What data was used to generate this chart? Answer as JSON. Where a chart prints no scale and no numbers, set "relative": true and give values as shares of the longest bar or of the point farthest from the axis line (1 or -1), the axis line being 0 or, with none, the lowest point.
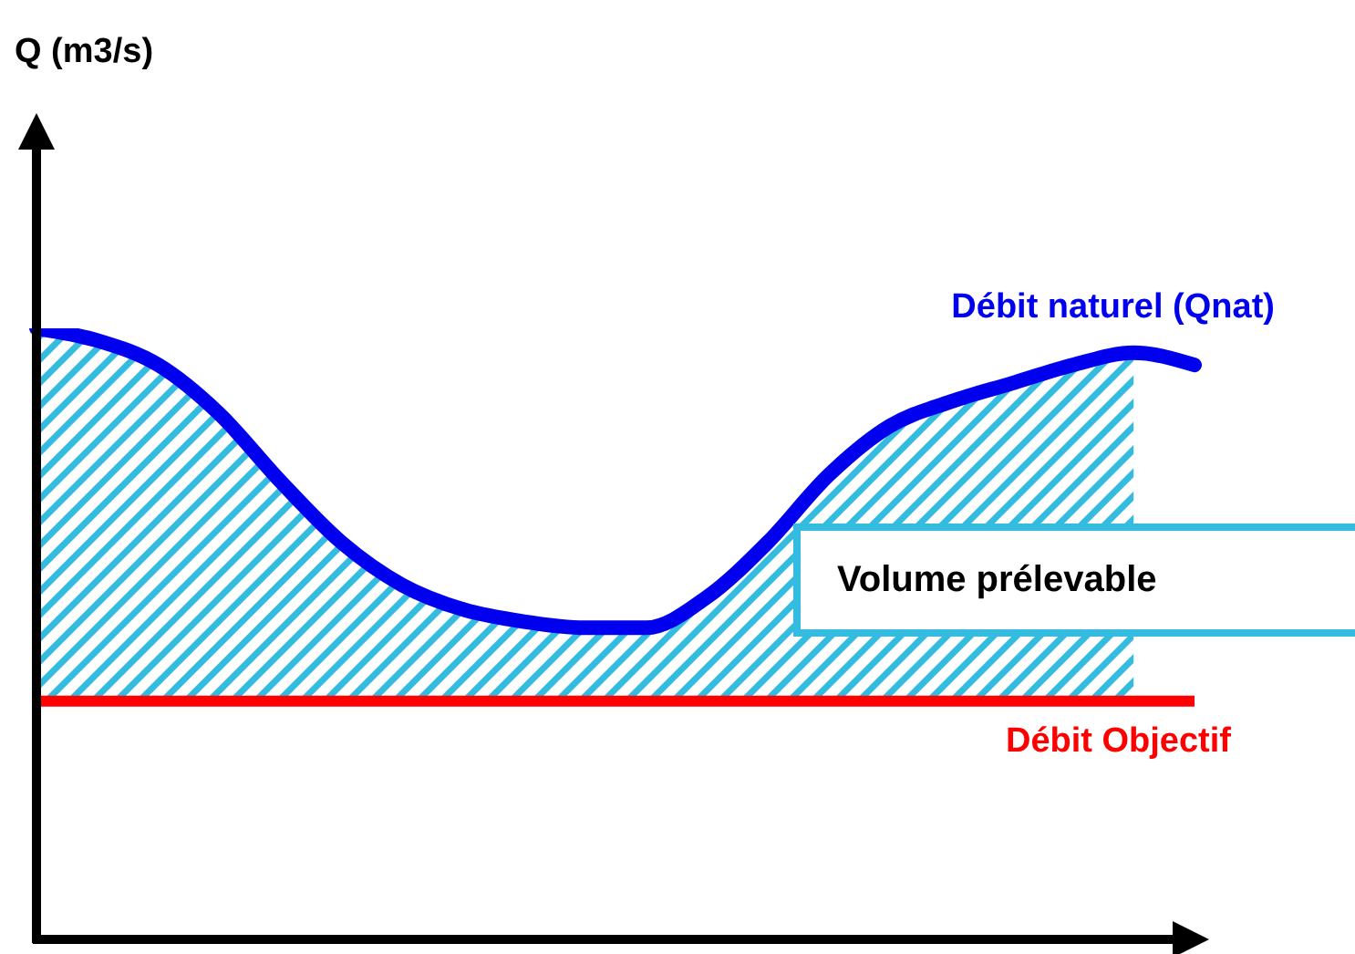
{
  "chart_data": {
    "type": "line",
    "relative": true,
    "annotations": [
      "Q (m3/s)"
    ],
    "categories": [
      null,
      null,
      null,
      null,
      null,
      null,
      null,
      null,
      null,
      null,
      null,
      null,
      null,
      null,
      null,
      null,
      null,
      null,
      null,
      null
    ],
    "series": [
      {
        "name": "Volume prélevable",
        "type": "area",
        "color": "#33bbe0",
        "values": [
          1,
          0.98,
          0.94,
          0.86,
          0.75,
          0.65,
          0.58,
          0.54,
          0.52,
          0.51,
          0.51,
          0.56,
          0.65,
          0.76,
          0.84,
          0.88,
          0.91,
          0.94,
          0.96,
          null
        ]
      },
      {
        "name": "Débit naturel (Qnat)",
        "color": "#0000ee",
        "values": [
          1,
          0.98,
          0.94,
          0.86,
          0.75,
          0.65,
          0.58,
          0.54,
          0.52,
          0.51,
          0.51,
          0.56,
          0.65,
          0.76,
          0.84,
          0.88,
          0.91,
          0.94,
          0.96,
          0.94
        ]
      }
    ],
    "ref_lines": [
      {
        "axis": "y",
        "value": 0.39,
        "label": "Débit Objectif",
        "color": "#ff0000"
      }
    ],
    "legend": false,
    "grid": false,
    "marker": "none"
  }
}
